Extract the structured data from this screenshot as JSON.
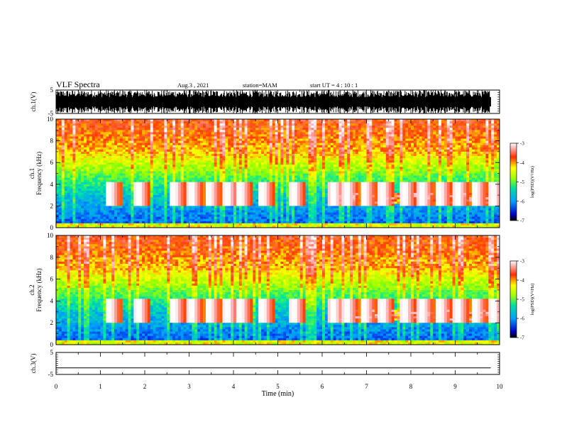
{
  "header": {
    "title": "VLF Spectra",
    "date": "Aug.3  , 2021",
    "station": "station=MAM",
    "start": "start  UT  =   4 : 10 : 1"
  },
  "chart_data": [
    {
      "type": "line",
      "panel": "ch.1 waveform",
      "ylabel": "ch.1(V)",
      "ylim": [
        -5,
        5
      ],
      "yticks": [
        "5",
        "-5"
      ],
      "xlim": [
        0,
        10
      ]
    },
    {
      "type": "heatmap",
      "panel": "ch.1 spectrogram",
      "ylabel": "ch.1",
      "ylabel2": "Frequency (kHz)",
      "ylim": [
        0,
        10
      ],
      "yticks": [
        "0",
        "2",
        "4",
        "6",
        "8",
        "10"
      ],
      "xlim": [
        0,
        10
      ],
      "colorbar": {
        "ticks": [
          "-3",
          "-4",
          "-5",
          "-6",
          "-7"
        ],
        "range": [
          -7,
          -3
        ],
        "label": "log(PSD)(V²/Hz)"
      },
      "bursts_min": [
        1.15,
        1.8,
        2.6,
        3.0,
        3.4,
        3.8,
        4.1,
        4.6,
        5.3,
        6.2,
        6.5,
        6.9,
        7.3,
        7.8,
        8.2,
        8.6,
        9.0,
        9.4,
        9.8
      ]
    },
    {
      "type": "heatmap",
      "panel": "ch.2 spectrogram",
      "ylabel": "ch.2",
      "ylabel2": "Frequency (kHz)",
      "ylim": [
        0,
        10
      ],
      "yticks": [
        "0",
        "2",
        "4",
        "6",
        "8",
        "10"
      ],
      "xlim": [
        0,
        10
      ],
      "colorbar": {
        "ticks": [
          "-3",
          "-4",
          "-5",
          "-6",
          "-7"
        ],
        "range": [
          -7,
          -3
        ],
        "label": "log(PSD)(V²/Hz)"
      },
      "bursts_min": [
        1.15,
        1.8,
        2.6,
        3.0,
        3.4,
        3.8,
        4.1,
        4.6,
        5.3,
        6.2,
        6.5,
        6.9,
        7.3,
        7.8,
        8.2,
        8.6,
        9.0,
        9.4,
        9.8
      ]
    },
    {
      "type": "line",
      "panel": "ch.3 waveform",
      "ylabel": "ch.3(V)",
      "ylim": [
        -5,
        5
      ],
      "yticks": [
        "5",
        "-5"
      ],
      "x": [
        0,
        9.8
      ],
      "y": [
        -2,
        -2
      ],
      "xlim": [
        0,
        10
      ],
      "xticks": [
        "0",
        "1",
        "2",
        "3",
        "4",
        "5",
        "6",
        "7",
        "8",
        "9",
        "10"
      ],
      "xlabel": "Time (min)"
    }
  ]
}
